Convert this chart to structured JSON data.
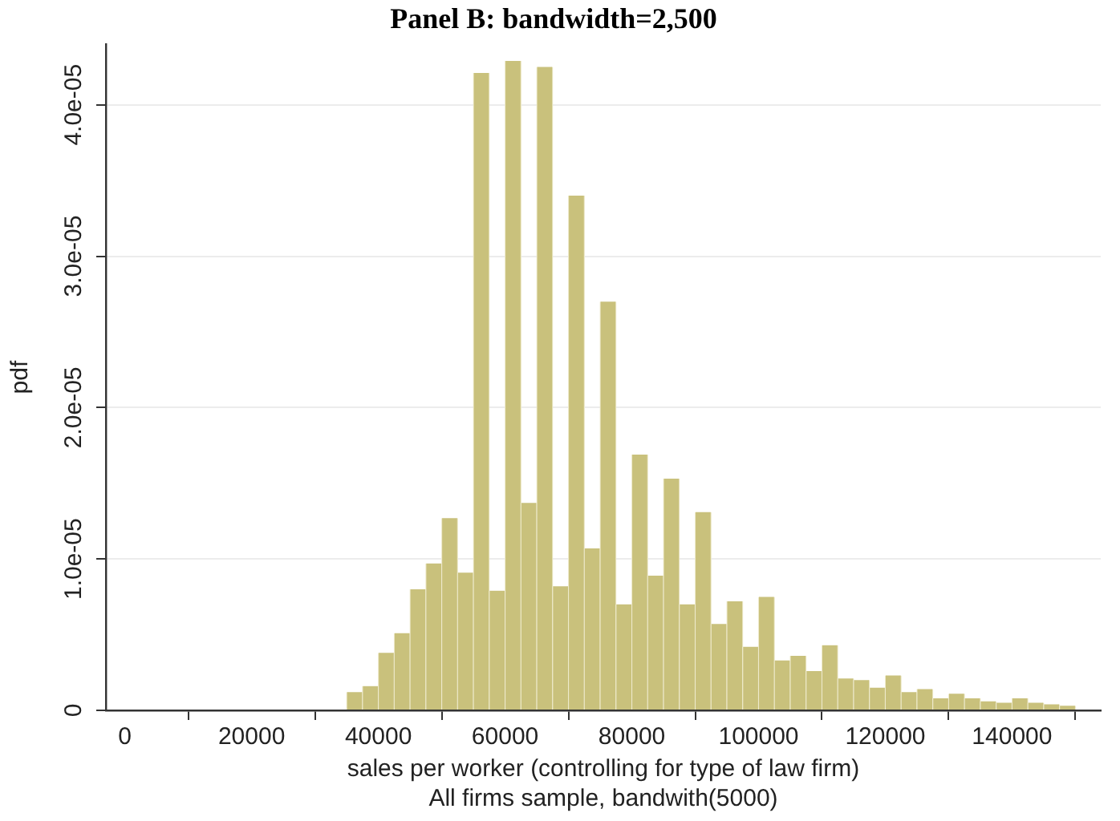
{
  "chart_data": {
    "type": "histogram",
    "title": "Panel B: bandwidth=2,500",
    "xlabel": "sales per worker (controlling for type of law firm)",
    "ylabel": "pdf",
    "annotations": [
      "All firms sample, bandwith(5000)"
    ],
    "bins": [
      35000,
      37500,
      40000,
      42500,
      45000,
      47500,
      50000,
      52500,
      55000,
      57500,
      60000,
      62500,
      65000,
      67500,
      70000,
      72500,
      75000,
      77500,
      80000,
      82500,
      85000,
      87500,
      90000,
      92500,
      95000,
      97500,
      100000,
      102500,
      105000,
      107500,
      110000,
      112500,
      115000,
      117500,
      120000,
      122500,
      125000,
      127500,
      130000,
      132500,
      135000,
      137500,
      140000,
      142500,
      145000,
      147500,
      150000
    ],
    "values": [
      1.2e-06,
      1.6e-06,
      3.8e-06,
      5.1e-06,
      8e-06,
      9.7e-06,
      1.27e-05,
      9.1e-06,
      4.21e-05,
      7.9e-06,
      4.29e-05,
      1.37e-05,
      4.25e-05,
      8.2e-06,
      3.4e-05,
      1.07e-05,
      2.7e-05,
      7e-06,
      1.69e-05,
      8.9e-06,
      1.53e-05,
      7e-06,
      1.31e-05,
      5.7e-06,
      7.2e-06,
      4.2e-06,
      7.5e-06,
      3.3e-06,
      3.6e-06,
      2.6e-06,
      4.3e-06,
      2.1e-06,
      2e-06,
      1.5e-06,
      2.3e-06,
      1.2e-06,
      1.4e-06,
      8e-07,
      1.1e-06,
      8e-07,
      6e-07,
      5e-07,
      8e-07,
      5e-07,
      4e-07,
      3e-07
    ],
    "color": "#c9c17c",
    "xlim": [
      -3000,
      154000
    ],
    "xticks": [
      0,
      20000,
      40000,
      60000,
      80000,
      100000,
      120000,
      140000
    ],
    "ylim": [
      0,
      4.4e-05
    ],
    "yticks": [
      {
        "value": 0,
        "label": "0"
      },
      {
        "value": 1e-05,
        "label": "1.0e-05"
      },
      {
        "value": 2e-05,
        "label": "2.0e-05"
      },
      {
        "value": 3e-05,
        "label": "3.0e-05"
      },
      {
        "value": 4e-05,
        "label": "4.0e-05"
      }
    ],
    "grid": "y"
  }
}
